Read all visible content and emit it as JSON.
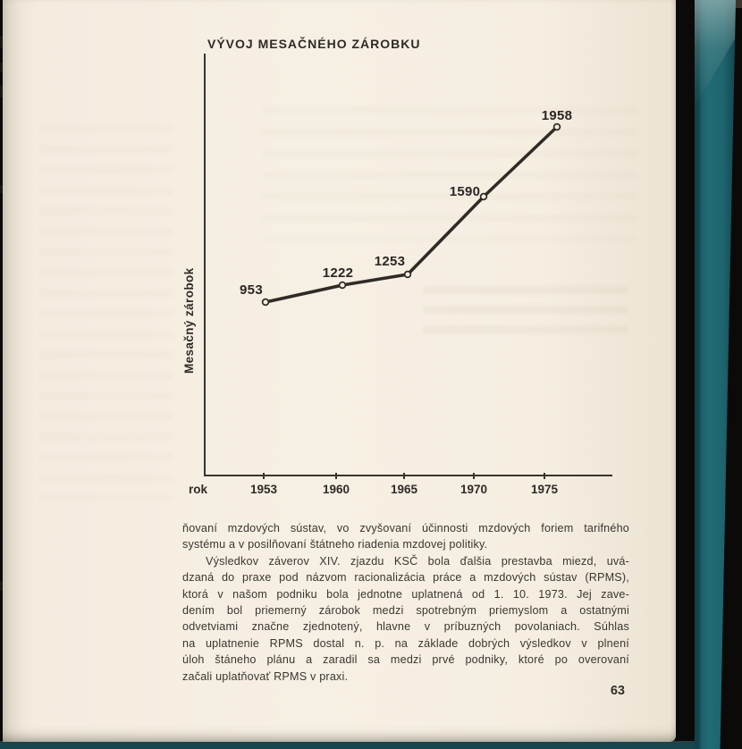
{
  "page": {
    "number": "63"
  },
  "chart_data": {
    "type": "line",
    "title": "VÝVOJ MESAČNÉHO ZÁROBKU",
    "xlabel": "rok",
    "ylabel": "Mesačný zárobok",
    "x": [
      "1953",
      "1960",
      "1965",
      "1970",
      "1975"
    ],
    "values": [
      953,
      1222,
      1253,
      1590,
      1958
    ],
    "point_labels": [
      "953",
      "1222",
      "1253",
      "1590",
      "1958"
    ],
    "marker": "open-circle",
    "grid": false,
    "legend": "none",
    "line_color": "#2e2b27"
  },
  "body": {
    "lines": [
      {
        "text": "ňovaní mzdových sústav, vo zvyšovaní účinnosti mzdových foriem tarifného",
        "indent": false,
        "justify": true
      },
      {
        "text": "systému a v posilňovaní štátneho riadenia mzdovej politiky.",
        "indent": false,
        "justify": false
      },
      {
        "text": "Výsledkov záverov XIV. zjazdu KSČ bola ďalšia prestavba miezd, uvá-",
        "indent": true,
        "justify": true
      },
      {
        "text": "dzaná do praxe pod názvom racionalizácia práce a mzdových sústav (RPMS),",
        "indent": false,
        "justify": true
      },
      {
        "text": "ktorá v našom podniku bola jednotne uplatnená od 1. 10. 1973. Jej zave-",
        "indent": false,
        "justify": true
      },
      {
        "text": "dením bol priemerný zárobok medzi spotrebným priemyslom a ostatnými",
        "indent": false,
        "justify": true
      },
      {
        "text": "odvetviami značne zjednotený, hlavne v príbuzných povolaniach. Súhlas",
        "indent": false,
        "justify": true
      },
      {
        "text": "na uplatnenie RPMS dostal n. p. na základe dobrých výsledkov v plnení",
        "indent": false,
        "justify": true
      },
      {
        "text": "úloh štáneho plánu a zaradil sa medzi prvé podniky, ktoré po overovaní",
        "indent": false,
        "justify": true
      },
      {
        "text": "začali uplatňovať RPMS v praxi.",
        "indent": false,
        "justify": false
      }
    ]
  },
  "colors": {
    "paper": "#f5eee1",
    "ink": "#2e2b27",
    "cover_teal": "#216b74",
    "background": "#0b0a09",
    "bottom_strip": "#17464e"
  }
}
